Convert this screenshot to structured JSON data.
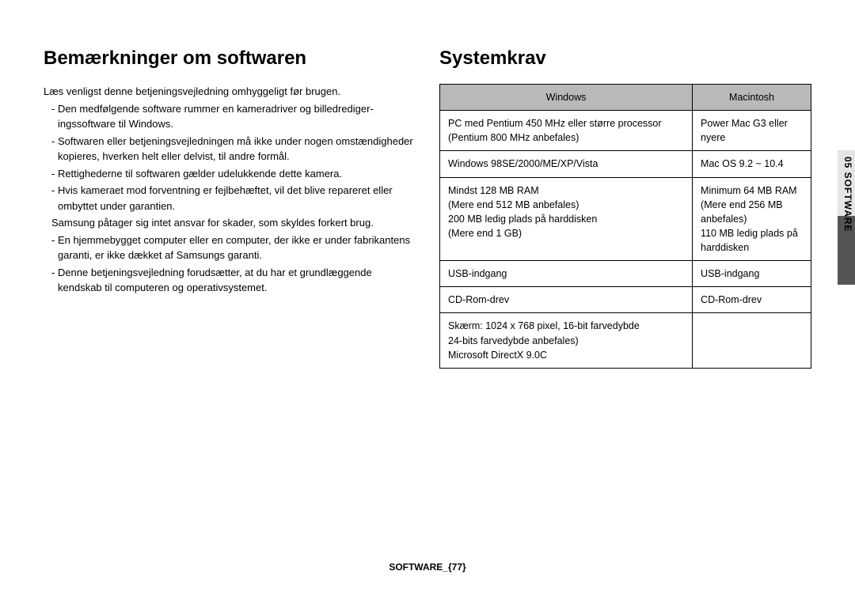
{
  "left": {
    "heading": "Bemærkninger om softwaren",
    "intro": "Læs venligst denne betjeningsvejledning omhyggeligt før brugen.",
    "bullets": [
      "- Den medfølgende software rummer en kameradriver og billedrediger­ingssoftware til Windows.",
      "- Softwaren eller betjeningsvejledningen må ikke under nogen omstæn­digheder kopieres, hverken helt eller delvist, til andre formål.",
      "- Rettighederne til softwaren gælder udelukkende dette kamera.",
      "- Hvis kameraet mod forventning er fejlbehæftet, vil det blive repareret eller ombyttet under garantien.",
      "  Samsung påtager sig intet ansvar for skader, som skyldes forkert brug.",
      "- En hjemmebygget computer eller en computer, der ikke er under fabri­kantens garanti, er ikke dækket af Samsungs garanti.",
      "- Denne betjeningsvejledning forudsætter, at du har et grundlæggende kendskab til computeren og operativsystemet."
    ]
  },
  "right": {
    "heading": "Systemkrav",
    "table": {
      "columns": [
        "Windows",
        "Macintosh"
      ],
      "rows": [
        [
          "PC med Pentium 450 MHz eller større processor (Pentium 800 MHz anbefales)",
          "Power Mac G3 eller nyere"
        ],
        [
          "Windows 98SE/2000/ME/XP/Vista",
          "Mac OS 9.2 ~ 10.4"
        ],
        [
          "Mindst 128 MB RAM\n(Mere end 512 MB anbefales)\n200 MB ledig plads på harddisken\n(Mere end 1 GB)",
          "Minimum 64 MB RAM\n(Mere end 256 MB anbefales)\n110 MB ledig plads på harddisken"
        ],
        [
          "USB-indgang",
          "USB-indgang"
        ],
        [
          "CD-Rom-drev",
          "CD-Rom-drev"
        ],
        [
          "Skærm: 1024 x 768 pixel, 16-bit farvedybde\n24-bits farvedybde anbefales)\nMicrosoft DirectX 9.0C",
          ""
        ]
      ]
    }
  },
  "sidetab": "05 SOFTWARE",
  "footer": "SOFTWARE_{77}"
}
